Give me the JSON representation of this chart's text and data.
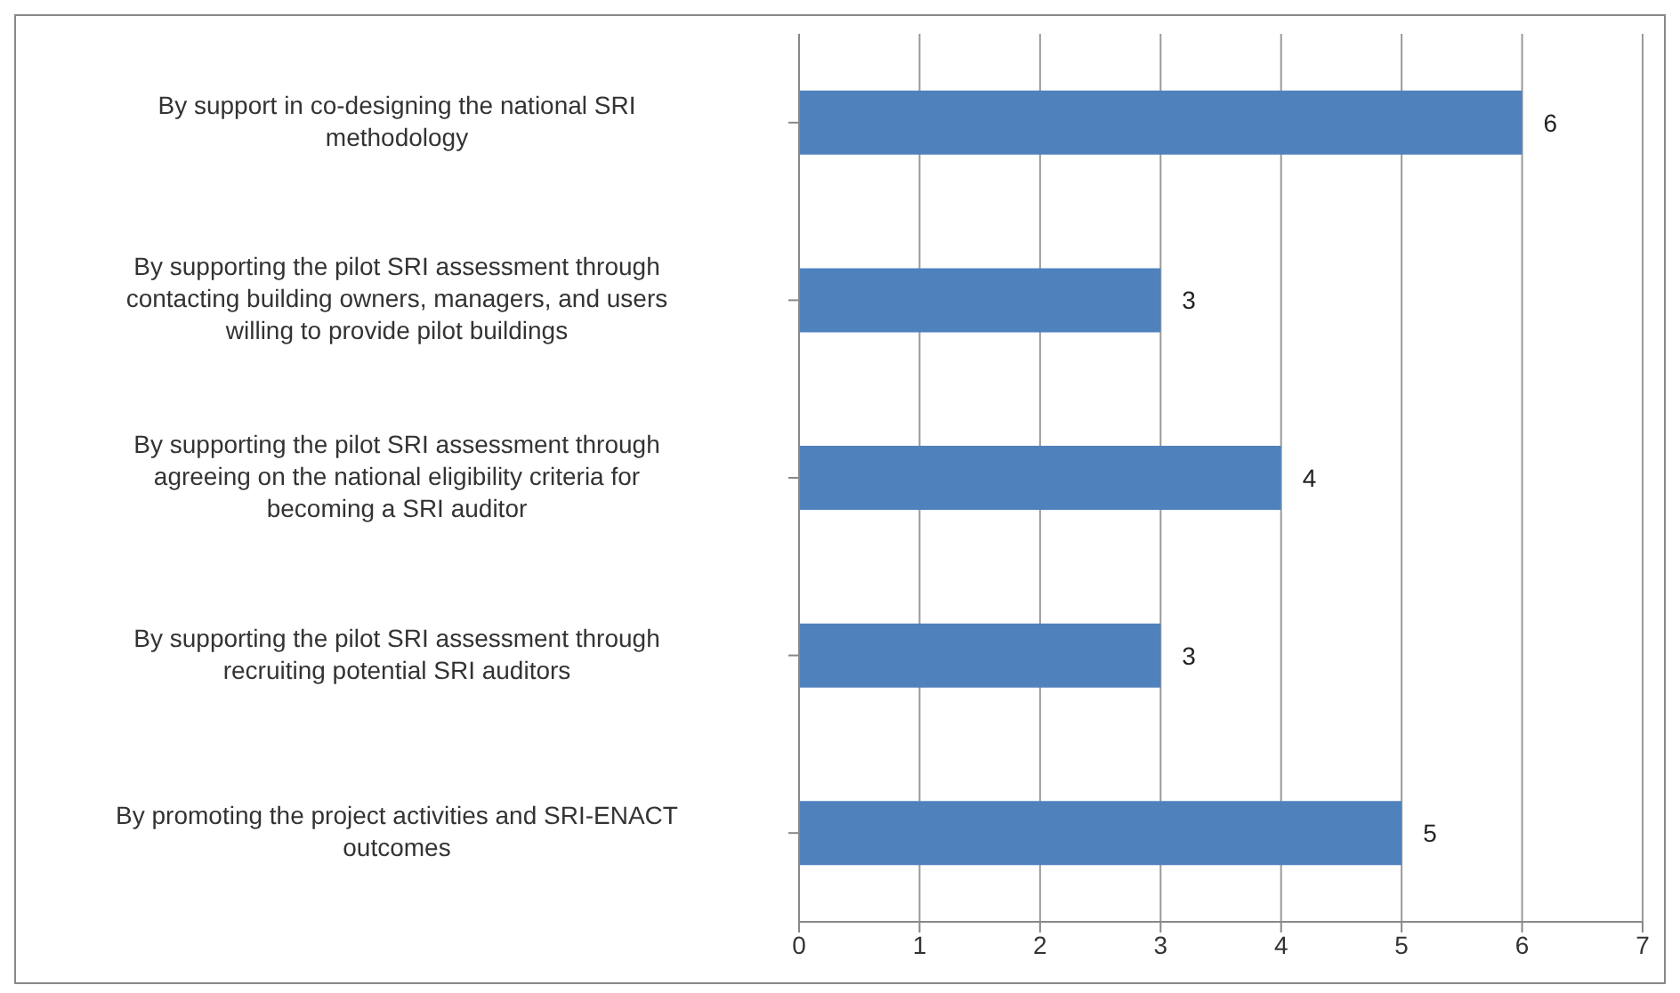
{
  "chart_data": {
    "type": "bar",
    "orientation": "horizontal",
    "categories": [
      "By support in co-designing the national SRI methodology",
      "By supporting the pilot SRI assessment through contacting building owners, managers, and users willing to provide pilot buildings",
      "By supporting the pilot SRI assessment through agreeing on the national eligibility criteria for becoming a SRI auditor",
      "By supporting the pilot SRI assessment through recruiting potential SRI auditors",
      "By promoting the project activities and SRI-ENACT outcomes"
    ],
    "values": [
      6,
      3,
      4,
      3,
      5
    ],
    "color": "#4f81bd",
    "xlim": [
      0,
      7
    ],
    "xticks": [
      0,
      1,
      2,
      3,
      4,
      5,
      6,
      7
    ],
    "grid": "x",
    "data_labels": true
  }
}
